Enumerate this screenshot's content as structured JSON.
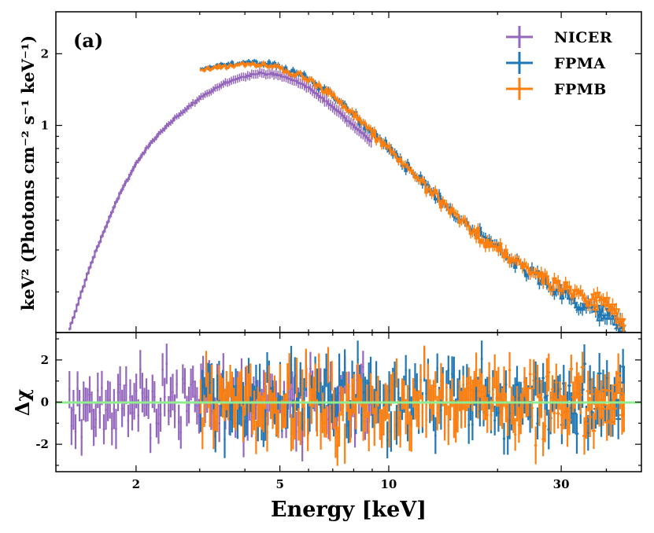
{
  "chart_data": {
    "type": "line",
    "panel_label": "(a)",
    "xlabel": "Energy [keV]",
    "xscale": "log",
    "xlim": [
      1.2,
      50
    ],
    "xticks": [
      {
        "value": 2,
        "label": "2"
      },
      {
        "value": 5,
        "label": "5"
      },
      {
        "value": 10,
        "label": "10"
      },
      {
        "value": 30,
        "label": "30"
      }
    ],
    "top_panel": {
      "ylabel": "keV² (Photons cm⁻² s⁻¹ keV⁻¹)",
      "yscale": "log",
      "ylim": [
        0.135,
        3.0
      ],
      "yticks": [
        {
          "value": 1,
          "label": "1"
        },
        {
          "value": 2,
          "label": "2"
        }
      ]
    },
    "bottom_panel": {
      "ylabel": "Δχ",
      "ylim": [
        -3.3,
        3.3
      ],
      "yticks": [
        {
          "value": 2,
          "label": "2"
        },
        {
          "value": 0,
          "label": "0"
        },
        {
          "value": -2,
          "label": "-2"
        }
      ],
      "zero_line_color": "#90ee90"
    },
    "legend": {
      "position": "top-right",
      "entries": [
        {
          "label": "NICER",
          "color": "#9467bd"
        },
        {
          "label": "FPMA",
          "color": "#1f77b4"
        },
        {
          "label": "FPMB",
          "color": "#ff7f0e"
        }
      ]
    },
    "series": [
      {
        "name": "NICER",
        "color": "#9467bd",
        "energy_range": [
          1.3,
          9.0
        ],
        "spectrum_points": [
          [
            1.3,
            0.135
          ],
          [
            1.36,
            0.165
          ],
          [
            1.42,
            0.205
          ],
          [
            1.5,
            0.26
          ],
          [
            1.6,
            0.335
          ],
          [
            1.7,
            0.42
          ],
          [
            1.8,
            0.51
          ],
          [
            1.9,
            0.6
          ],
          [
            2.0,
            0.69
          ],
          [
            2.2,
            0.85
          ],
          [
            2.5,
            1.04
          ],
          [
            3.0,
            1.3
          ],
          [
            3.5,
            1.5
          ],
          [
            4.0,
            1.62
          ],
          [
            4.5,
            1.66
          ],
          [
            5.0,
            1.62
          ],
          [
            5.5,
            1.54
          ],
          [
            6.0,
            1.44
          ],
          [
            7.0,
            1.2
          ],
          [
            8.0,
            1.0
          ],
          [
            9.0,
            0.85
          ]
        ],
        "residual_range": [
          -3.3,
          3.3
        ]
      },
      {
        "name": "FPMA",
        "color": "#1f77b4",
        "energy_range": [
          3.0,
          45.0
        ],
        "spectrum_points": [
          [
            3.0,
            1.72
          ],
          [
            3.5,
            1.8
          ],
          [
            4.0,
            1.84
          ],
          [
            4.5,
            1.83
          ],
          [
            5.0,
            1.78
          ],
          [
            6.0,
            1.58
          ],
          [
            7.0,
            1.35
          ],
          [
            8.0,
            1.12
          ],
          [
            10.0,
            0.8
          ],
          [
            12.0,
            0.6
          ],
          [
            15.0,
            0.43
          ],
          [
            20.0,
            0.3
          ],
          [
            25.0,
            0.24
          ],
          [
            30.0,
            0.2
          ],
          [
            35.0,
            0.175
          ],
          [
            40.0,
            0.16
          ],
          [
            45.0,
            0.14
          ]
        ],
        "residual_range": [
          -3.3,
          3.3
        ]
      },
      {
        "name": "FPMB",
        "color": "#ff7f0e",
        "energy_range": [
          3.0,
          45.0
        ],
        "spectrum_points": [
          [
            3.0,
            1.7
          ],
          [
            3.5,
            1.77
          ],
          [
            4.0,
            1.8
          ],
          [
            4.5,
            1.8
          ],
          [
            5.0,
            1.76
          ],
          [
            6.0,
            1.56
          ],
          [
            7.0,
            1.33
          ],
          [
            8.0,
            1.11
          ],
          [
            10.0,
            0.8
          ],
          [
            12.0,
            0.6
          ],
          [
            15.0,
            0.43
          ],
          [
            20.0,
            0.3
          ],
          [
            25.0,
            0.245
          ],
          [
            30.0,
            0.21
          ],
          [
            35.0,
            0.19
          ],
          [
            40.0,
            0.18
          ],
          [
            45.0,
            0.15
          ]
        ],
        "residual_range": [
          -3.3,
          3.3
        ]
      }
    ]
  }
}
